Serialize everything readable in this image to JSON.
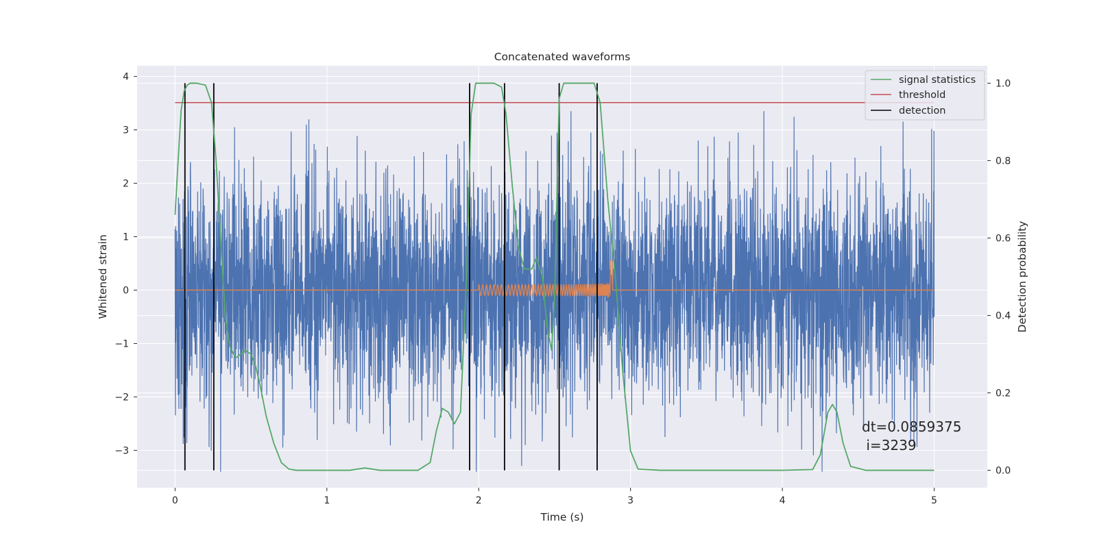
{
  "colors": {
    "background": "#eaeaf2",
    "grid": "#ffffff",
    "strain": "#4c72b0",
    "injection": "#dd8452",
    "statistics": "#55a868",
    "threshold": "#c44e52",
    "detection": "#000000"
  },
  "chart_data": {
    "type": "line",
    "title": "Concatenated waveforms",
    "xlabel": "Time (s)",
    "ylabel_left": "Whitened strain",
    "ylabel_right": "Detection probability",
    "xlim": [
      -0.25,
      5.35
    ],
    "ylim_left": [
      -3.7,
      4.2
    ],
    "ylim_right": [
      -0.045,
      1.045
    ],
    "xticks": [
      "0",
      "1",
      "2",
      "3",
      "4",
      "5"
    ],
    "yticks_left": [
      "4",
      "3",
      "2",
      "1",
      "0",
      "−1",
      "−2",
      "−3"
    ],
    "yticks_right": [
      "1.0",
      "0.8",
      "0.6",
      "0.4",
      "0.2",
      "0.0"
    ],
    "grid": true,
    "legend_position": "top-right",
    "series": [
      {
        "name": "signal statistics",
        "axis": "right",
        "x": [
          0,
          0.02,
          0.04,
          0.06,
          0.08,
          0.1,
          0.14,
          0.2,
          0.24,
          0.27,
          0.3,
          0.33,
          0.36,
          0.4,
          0.43,
          0.46,
          0.5,
          0.53,
          0.56,
          0.6,
          0.65,
          0.7,
          0.75,
          0.8,
          1.0,
          1.15,
          1.25,
          1.35,
          1.6,
          1.68,
          1.72,
          1.76,
          1.8,
          1.84,
          1.88,
          1.92,
          1.95,
          1.98,
          2.02,
          2.1,
          2.15,
          2.18,
          2.22,
          2.26,
          2.3,
          2.35,
          2.38,
          2.42,
          2.45,
          2.48,
          2.5,
          2.53,
          2.56,
          2.6,
          2.7,
          2.76,
          2.8,
          2.85,
          2.9,
          2.95,
          3.0,
          3.05,
          3.2,
          3.5,
          4.0,
          4.2,
          4.25,
          4.3,
          4.33,
          4.36,
          4.4,
          4.45,
          4.55,
          5.0
        ],
        "y": [
          0.66,
          0.8,
          0.93,
          0.98,
          0.995,
          1.0,
          1.0,
          0.995,
          0.95,
          0.8,
          0.6,
          0.4,
          0.32,
          0.29,
          0.3,
          0.31,
          0.3,
          0.27,
          0.22,
          0.14,
          0.07,
          0.02,
          0.003,
          0.0,
          0.0,
          0.0,
          0.006,
          0.0,
          0.0,
          0.02,
          0.1,
          0.16,
          0.15,
          0.12,
          0.15,
          0.5,
          0.92,
          1.0,
          1.0,
          1.0,
          0.99,
          0.92,
          0.74,
          0.58,
          0.52,
          0.52,
          0.55,
          0.5,
          0.37,
          0.31,
          0.45,
          0.96,
          1.0,
          1.0,
          1.0,
          1.0,
          0.95,
          0.7,
          0.5,
          0.25,
          0.05,
          0.003,
          0.0,
          0.0,
          0.0,
          0.002,
          0.04,
          0.15,
          0.17,
          0.15,
          0.07,
          0.01,
          0.0,
          0.0
        ]
      },
      {
        "name": "threshold",
        "axis": "right",
        "x": [
          0,
          5
        ],
        "y": [
          0.95,
          0.95
        ]
      },
      {
        "name": "detection",
        "axis": "right",
        "type": "vlines",
        "x": [
          0.065,
          0.255,
          1.94,
          2.17,
          2.53,
          2.78
        ],
        "ymin": -0.0,
        "ymax": 1.0
      }
    ],
    "annotations": [
      "dt=0.0859375",
      "i=3239"
    ]
  },
  "legend": {
    "items": [
      "signal statistics",
      "threshold",
      "detection"
    ]
  },
  "annotation": {
    "line1": "dt=0.0859375",
    "line2": " i=3239"
  }
}
